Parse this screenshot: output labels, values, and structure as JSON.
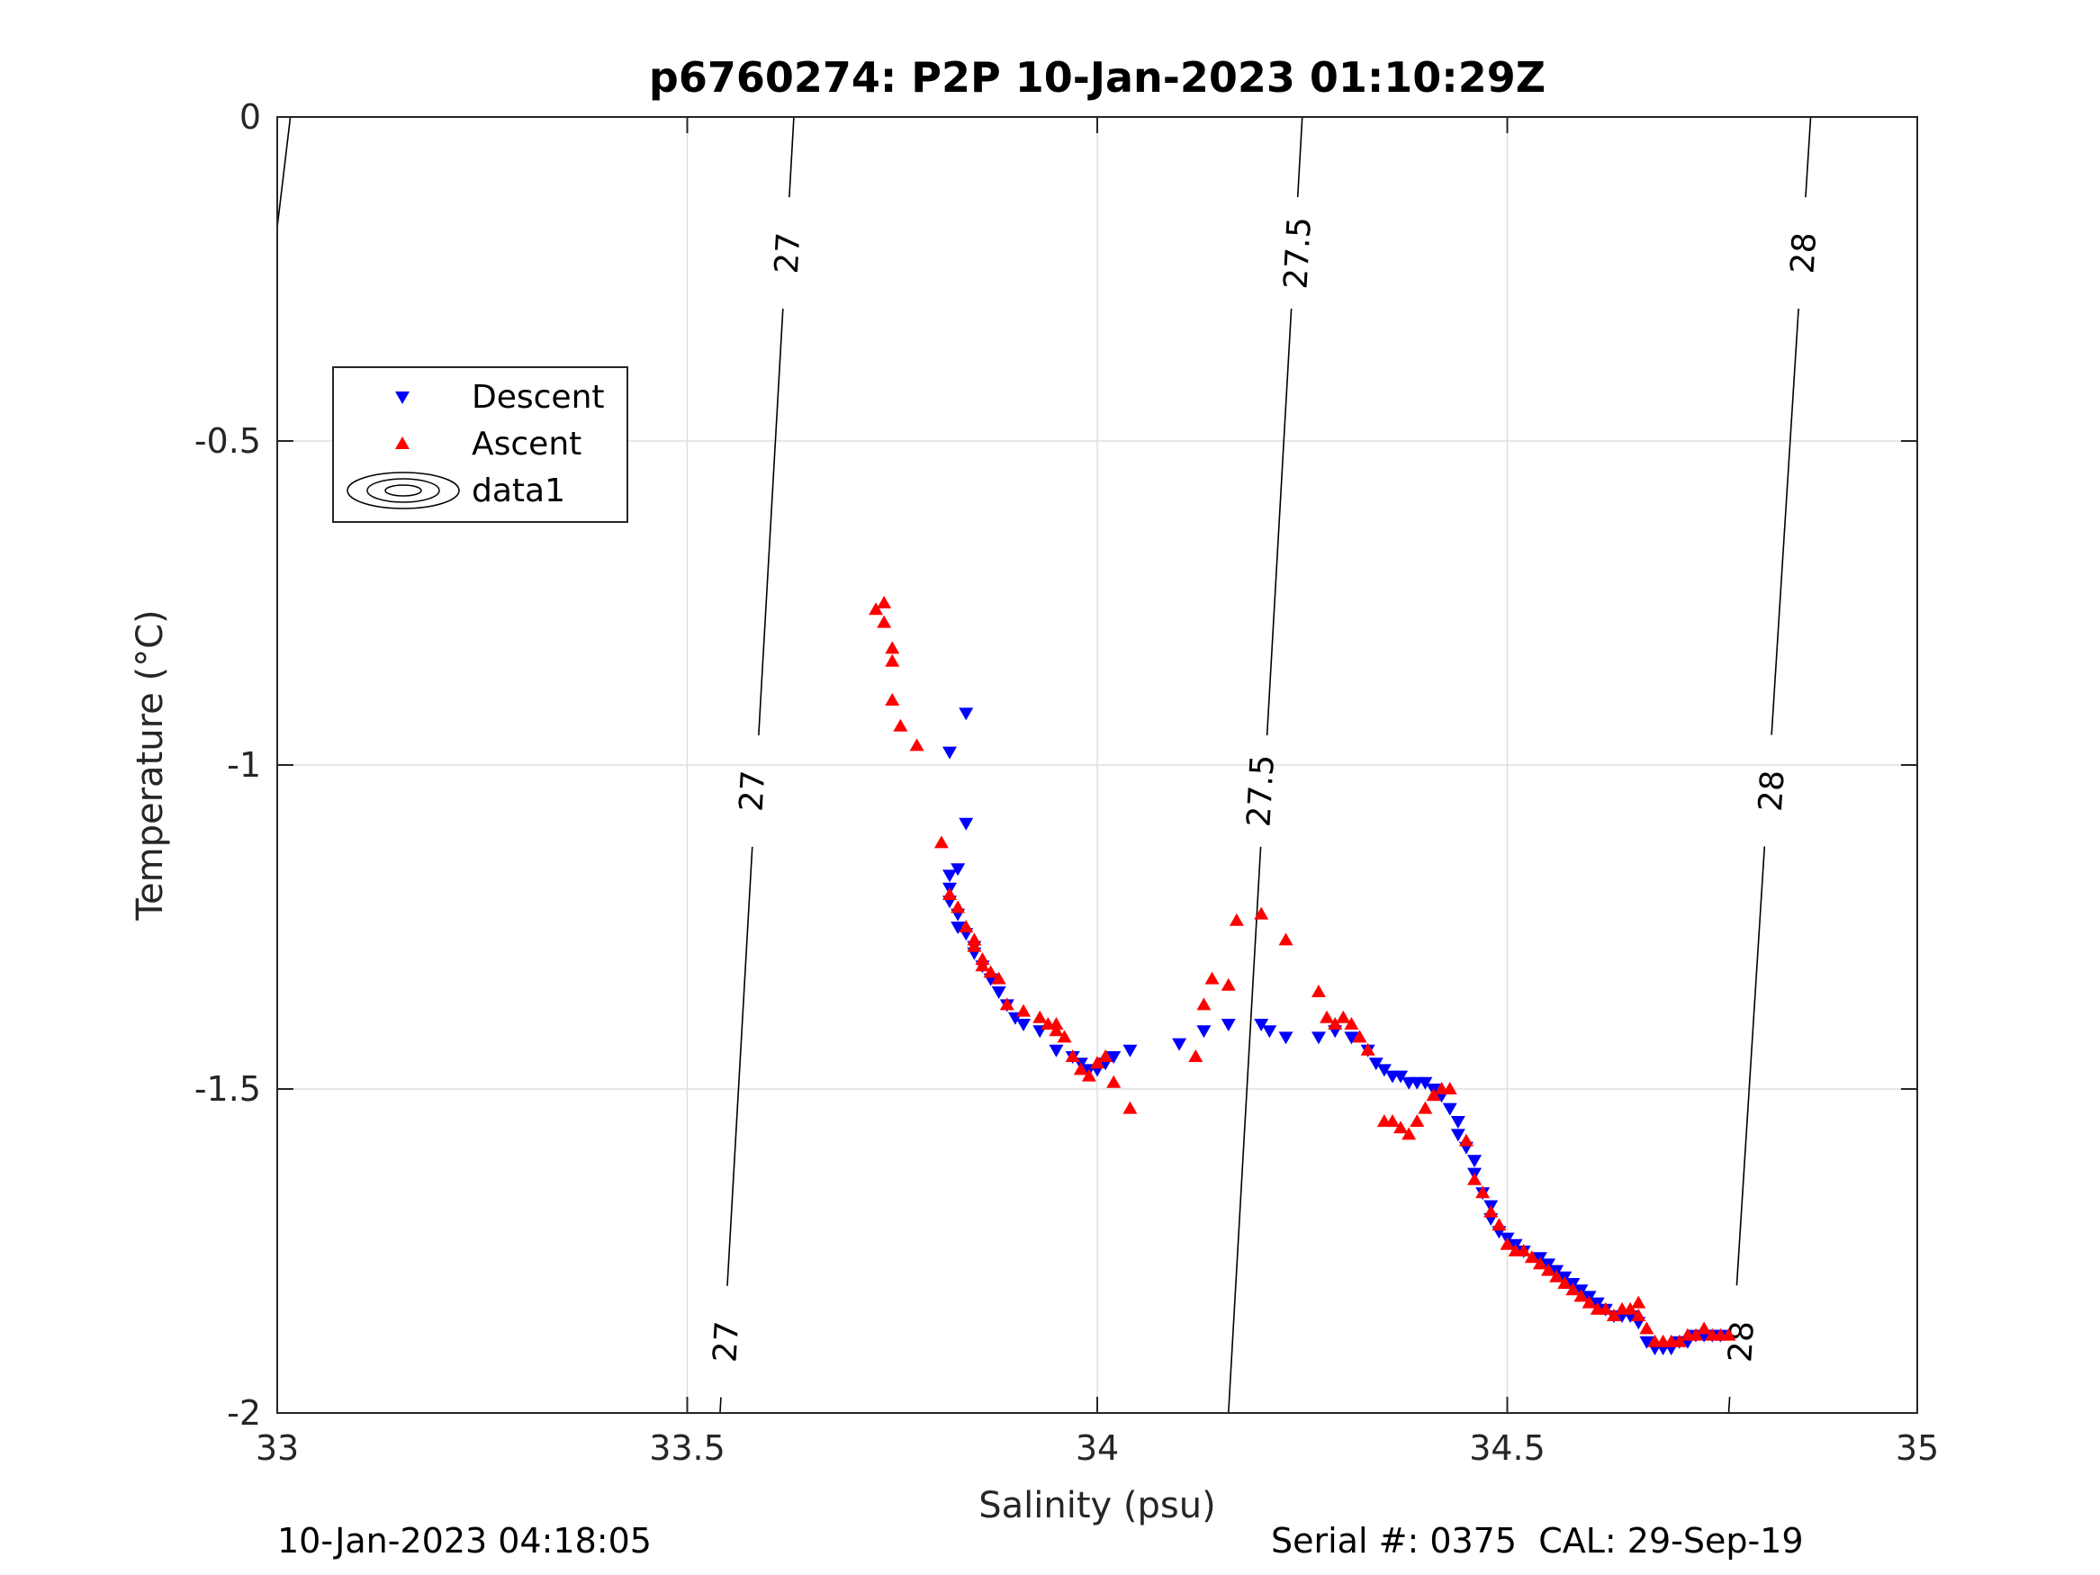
{
  "chart_data": {
    "type": "scatter",
    "title": "p6760274: P2P 10-Jan-2023 01:10:29Z",
    "xlabel": "Salinity (psu)",
    "ylabel": "Temperature (°C)",
    "xlim": [
      33,
      35
    ],
    "ylim": [
      -2,
      0
    ],
    "xticks": [
      33,
      33.5,
      34,
      34.5,
      35
    ],
    "yticks": [
      -2,
      -1.5,
      -1,
      -0.5,
      0
    ],
    "xtick_labels": [
      "33",
      "33.5",
      "34",
      "34.5",
      "35"
    ],
    "ytick_labels": [
      "-2",
      "-1.5",
      "-1",
      "-0.5",
      "0"
    ],
    "grid": true,
    "legend": {
      "placement": "upper-left",
      "entries": [
        "Descent",
        "Ascent",
        "data1"
      ]
    },
    "contours": [
      {
        "level": 27,
        "points": [
          [
            33.54,
            -2.0
          ],
          [
            33.63,
            0.0
          ]
        ],
        "labels": [
          {
            "text": "27",
            "x": 33.623,
            "y": -0.21
          },
          {
            "text": "27",
            "x": 33.58,
            "y": -1.04
          },
          {
            "text": "27",
            "x": 33.548,
            "y": -1.89
          }
        ]
      },
      {
        "level": 27.5,
        "points": [
          [
            34.16,
            -2.0
          ],
          [
            34.25,
            0.0
          ]
        ],
        "labels": [
          {
            "text": "27.5",
            "x": 34.245,
            "y": -0.21
          },
          {
            "text": "27.5",
            "x": 34.2,
            "y": -1.04
          }
        ]
      },
      {
        "level": 28,
        "points": [
          [
            34.77,
            -2.0
          ],
          [
            34.87,
            0.0
          ]
        ],
        "labels": [
          {
            "text": "28",
            "x": 34.862,
            "y": -0.21
          },
          {
            "text": "28",
            "x": 34.823,
            "y": -1.04
          },
          {
            "text": "28",
            "x": 34.786,
            "y": -1.89
          }
        ]
      },
      {
        "level": 26.8,
        "points": [
          [
            33.0,
            -0.17
          ],
          [
            33.016,
            0.0
          ]
        ],
        "labels": []
      }
    ],
    "series": [
      {
        "name": "Descent",
        "color": "#0000ff",
        "marker": "triangle-down",
        "points": [
          [
            33.84,
            -0.92
          ],
          [
            33.82,
            -0.98
          ],
          [
            33.84,
            -1.09
          ],
          [
            33.83,
            -1.16
          ],
          [
            33.82,
            -1.17
          ],
          [
            33.82,
            -1.19
          ],
          [
            33.82,
            -1.21
          ],
          [
            33.83,
            -1.23
          ],
          [
            33.83,
            -1.25
          ],
          [
            33.84,
            -1.26
          ],
          [
            33.85,
            -1.28
          ],
          [
            33.85,
            -1.29
          ],
          [
            33.86,
            -1.31
          ],
          [
            33.87,
            -1.33
          ],
          [
            33.88,
            -1.35
          ],
          [
            33.89,
            -1.37
          ],
          [
            33.9,
            -1.39
          ],
          [
            33.91,
            -1.4
          ],
          [
            33.93,
            -1.41
          ],
          [
            33.95,
            -1.44
          ],
          [
            33.97,
            -1.45
          ],
          [
            33.98,
            -1.46
          ],
          [
            33.99,
            -1.47
          ],
          [
            34.0,
            -1.47
          ],
          [
            34.01,
            -1.46
          ],
          [
            34.02,
            -1.45
          ],
          [
            34.04,
            -1.44
          ],
          [
            34.1,
            -1.43
          ],
          [
            34.13,
            -1.41
          ],
          [
            34.16,
            -1.4
          ],
          [
            34.2,
            -1.4
          ],
          [
            34.21,
            -1.41
          ],
          [
            34.23,
            -1.42
          ],
          [
            34.27,
            -1.42
          ],
          [
            34.29,
            -1.41
          ],
          [
            34.31,
            -1.42
          ],
          [
            34.33,
            -1.44
          ],
          [
            34.34,
            -1.46
          ],
          [
            34.35,
            -1.47
          ],
          [
            34.36,
            -1.48
          ],
          [
            34.37,
            -1.48
          ],
          [
            34.38,
            -1.49
          ],
          [
            34.39,
            -1.49
          ],
          [
            34.4,
            -1.49
          ],
          [
            34.41,
            -1.5
          ],
          [
            34.42,
            -1.51
          ],
          [
            34.43,
            -1.53
          ],
          [
            34.44,
            -1.55
          ],
          [
            34.44,
            -1.57
          ],
          [
            34.45,
            -1.59
          ],
          [
            34.46,
            -1.61
          ],
          [
            34.46,
            -1.63
          ],
          [
            34.47,
            -1.66
          ],
          [
            34.48,
            -1.68
          ],
          [
            34.48,
            -1.7
          ],
          [
            34.49,
            -1.72
          ],
          [
            34.5,
            -1.73
          ],
          [
            34.51,
            -1.74
          ],
          [
            34.52,
            -1.75
          ],
          [
            34.54,
            -1.76
          ],
          [
            34.55,
            -1.77
          ],
          [
            34.56,
            -1.78
          ],
          [
            34.57,
            -1.79
          ],
          [
            34.58,
            -1.8
          ],
          [
            34.59,
            -1.81
          ],
          [
            34.6,
            -1.82
          ],
          [
            34.61,
            -1.83
          ],
          [
            34.62,
            -1.84
          ],
          [
            34.63,
            -1.85
          ],
          [
            34.64,
            -1.85
          ],
          [
            34.65,
            -1.85
          ],
          [
            34.66,
            -1.86
          ],
          [
            34.67,
            -1.89
          ],
          [
            34.68,
            -1.9
          ],
          [
            34.69,
            -1.9
          ],
          [
            34.7,
            -1.9
          ],
          [
            34.71,
            -1.89
          ],
          [
            34.72,
            -1.89
          ],
          [
            34.73,
            -1.88
          ],
          [
            34.74,
            -1.88
          ],
          [
            34.75,
            -1.88
          ],
          [
            34.76,
            -1.88
          ]
        ]
      },
      {
        "name": "Ascent",
        "color": "#ff0000",
        "marker": "triangle-up",
        "points": [
          [
            33.74,
            -0.75
          ],
          [
            33.73,
            -0.76
          ],
          [
            33.74,
            -0.78
          ],
          [
            33.75,
            -0.82
          ],
          [
            33.75,
            -0.84
          ],
          [
            33.75,
            -0.9
          ],
          [
            33.76,
            -0.94
          ],
          [
            33.78,
            -0.97
          ],
          [
            33.81,
            -1.12
          ],
          [
            33.82,
            -1.2
          ],
          [
            33.83,
            -1.22
          ],
          [
            33.84,
            -1.25
          ],
          [
            33.85,
            -1.27
          ],
          [
            33.85,
            -1.28
          ],
          [
            33.86,
            -1.3
          ],
          [
            33.86,
            -1.31
          ],
          [
            33.87,
            -1.32
          ],
          [
            33.88,
            -1.33
          ],
          [
            33.89,
            -1.37
          ],
          [
            33.91,
            -1.38
          ],
          [
            33.93,
            -1.39
          ],
          [
            33.94,
            -1.4
          ],
          [
            33.95,
            -1.4
          ],
          [
            33.95,
            -1.41
          ],
          [
            33.96,
            -1.42
          ],
          [
            33.97,
            -1.45
          ],
          [
            33.98,
            -1.47
          ],
          [
            33.99,
            -1.48
          ],
          [
            34.0,
            -1.46
          ],
          [
            34.01,
            -1.45
          ],
          [
            34.02,
            -1.49
          ],
          [
            34.04,
            -1.53
          ],
          [
            34.12,
            -1.45
          ],
          [
            34.13,
            -1.37
          ],
          [
            34.14,
            -1.33
          ],
          [
            34.16,
            -1.34
          ],
          [
            34.17,
            -1.24
          ],
          [
            34.2,
            -1.23
          ],
          [
            34.23,
            -1.27
          ],
          [
            34.27,
            -1.35
          ],
          [
            34.28,
            -1.39
          ],
          [
            34.29,
            -1.4
          ],
          [
            34.3,
            -1.39
          ],
          [
            34.31,
            -1.4
          ],
          [
            34.32,
            -1.42
          ],
          [
            34.33,
            -1.44
          ],
          [
            34.35,
            -1.55
          ],
          [
            34.36,
            -1.55
          ],
          [
            34.37,
            -1.56
          ],
          [
            34.38,
            -1.57
          ],
          [
            34.39,
            -1.55
          ],
          [
            34.4,
            -1.53
          ],
          [
            34.41,
            -1.51
          ],
          [
            34.42,
            -1.5
          ],
          [
            34.43,
            -1.5
          ],
          [
            34.45,
            -1.58
          ],
          [
            34.46,
            -1.64
          ],
          [
            34.47,
            -1.66
          ],
          [
            34.48,
            -1.69
          ],
          [
            34.49,
            -1.71
          ],
          [
            34.5,
            -1.74
          ],
          [
            34.51,
            -1.75
          ],
          [
            34.52,
            -1.75
          ],
          [
            34.53,
            -1.76
          ],
          [
            34.54,
            -1.77
          ],
          [
            34.55,
            -1.78
          ],
          [
            34.56,
            -1.79
          ],
          [
            34.57,
            -1.8
          ],
          [
            34.58,
            -1.81
          ],
          [
            34.59,
            -1.82
          ],
          [
            34.6,
            -1.83
          ],
          [
            34.61,
            -1.84
          ],
          [
            34.62,
            -1.84
          ],
          [
            34.63,
            -1.85
          ],
          [
            34.64,
            -1.84
          ],
          [
            34.65,
            -1.84
          ],
          [
            34.66,
            -1.83
          ],
          [
            34.66,
            -1.85
          ],
          [
            34.67,
            -1.87
          ],
          [
            34.68,
            -1.89
          ],
          [
            34.69,
            -1.89
          ],
          [
            34.7,
            -1.89
          ],
          [
            34.71,
            -1.89
          ],
          [
            34.72,
            -1.88
          ],
          [
            34.73,
            -1.88
          ],
          [
            34.74,
            -1.87
          ],
          [
            34.75,
            -1.88
          ],
          [
            34.76,
            -1.88
          ],
          [
            34.77,
            -1.88
          ]
        ]
      }
    ]
  },
  "footer": {
    "timestamp": "10-Jan-2023 04:18:05",
    "serial": "Serial #: 0375  CAL: 29-Sep-19"
  },
  "colors": {
    "grid": "#dfdfdf",
    "axes": "#262626",
    "contour": "#000000"
  }
}
